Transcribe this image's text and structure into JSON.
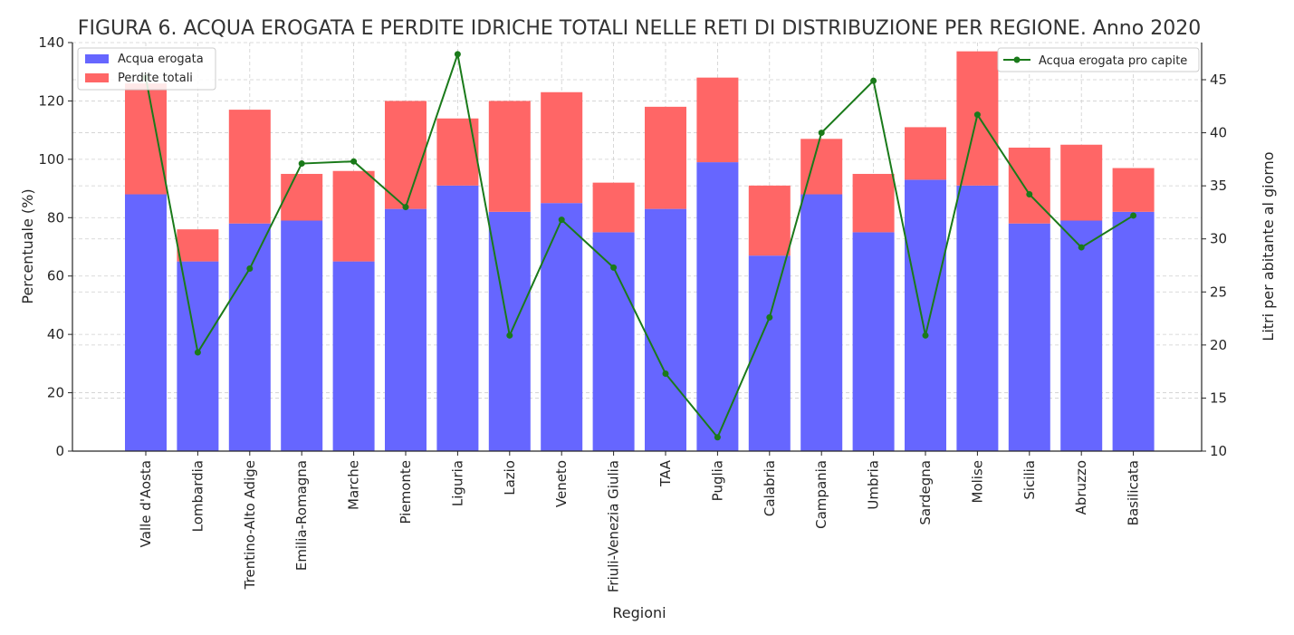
{
  "chart_data": {
    "type": "bar",
    "stacked": true,
    "title": "FIGURA 6. ACQUA EROGATA E PERDITE IDRICHE TOTALI NELLE RETI DI DISTRIBUZIONE PER REGIONE. Anno 2020",
    "xlabel": "Regioni",
    "ylabel": "Percentuale (%)",
    "y2label": "Litri per abitante al giorno",
    "ylim": [
      0,
      140
    ],
    "y2lim": [
      10,
      48.5
    ],
    "yticks": [
      "0",
      "20",
      "40",
      "60",
      "80",
      "100",
      "120",
      "140"
    ],
    "y2ticks": [
      "10",
      "15",
      "20",
      "25",
      "30",
      "35",
      "40",
      "45"
    ],
    "grid": true,
    "categories": [
      "Valle d'Aosta",
      "Lombardia",
      "Trentino-Alto Adige",
      "Emilia-Romagna",
      "Marche",
      "Piemonte",
      "Liguria",
      "Lazio",
      "Veneto",
      "Friuli-Venezia Giulia",
      "TAA",
      "Puglia",
      "Calabria",
      "Campania",
      "Umbria",
      "Sardegna",
      "Molise",
      "Sicilia",
      "Abruzzo",
      "Basilicata"
    ],
    "series": [
      {
        "name": "Acqua erogata",
        "type": "bar",
        "axis": "left",
        "color": "#6666ff",
        "values": [
          88,
          65,
          78,
          79,
          65,
          83,
          91,
          82,
          85,
          75,
          83,
          99,
          67,
          88,
          75,
          93,
          91,
          78,
          79,
          82
        ]
      },
      {
        "name": "Perdite totali",
        "type": "bar",
        "axis": "left",
        "color": "#ff6666",
        "values": [
          38,
          11,
          39,
          16,
          31,
          37,
          23,
          38,
          38,
          17,
          35,
          29,
          24,
          19,
          20,
          18,
          46,
          26,
          26,
          15
        ]
      },
      {
        "name": "Acqua erogata pro capite",
        "type": "line",
        "axis": "right",
        "color": "#1a7a1a",
        "values": [
          45.2,
          19.3,
          27.2,
          37.1,
          37.3,
          33.0,
          47.4,
          20.9,
          31.8,
          27.3,
          17.3,
          11.3,
          22.6,
          40.0,
          44.9,
          20.9,
          41.7,
          34.2,
          29.2,
          32.2
        ]
      }
    ],
    "legend_left": "top-left",
    "legend_right": "top-right"
  }
}
